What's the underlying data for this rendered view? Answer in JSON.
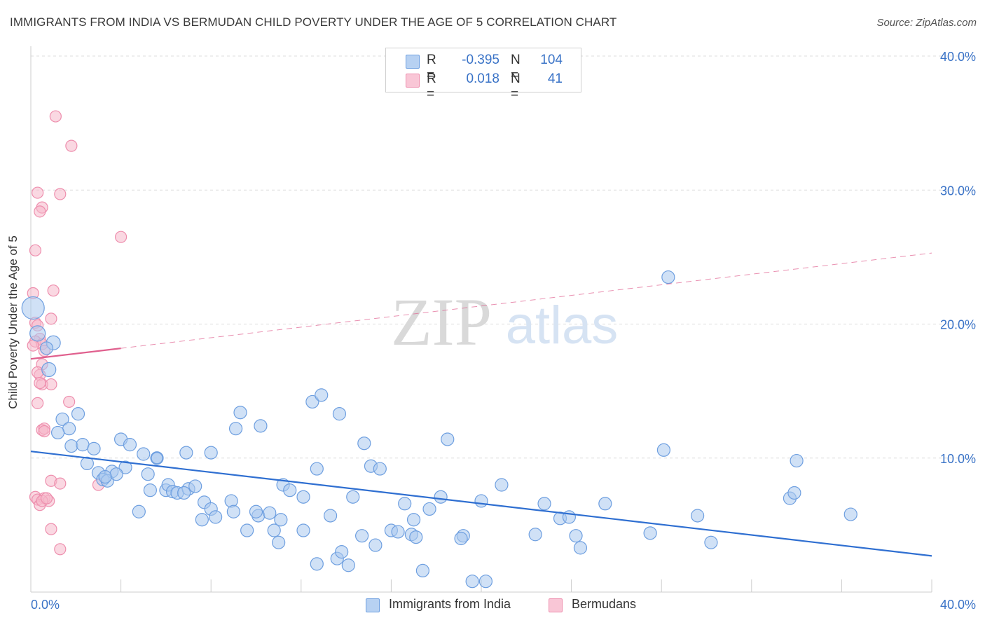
{
  "title": "IMMIGRANTS FROM INDIA VS BERMUDAN CHILD POVERTY UNDER THE AGE OF 5 CORRELATION CHART",
  "source": "Source: ZipAtlas.com",
  "watermark": {
    "zip": "ZIP",
    "atlas": "atlas"
  },
  "legend": {
    "r_label": "R =",
    "n_label": "N =",
    "rows": [
      {
        "r": "-0.395",
        "n": "104"
      },
      {
        "r": "0.018",
        "n": "41"
      }
    ]
  },
  "chart_data": {
    "type": "scatter",
    "title": "IMMIGRANTS FROM INDIA VS BERMUDAN CHILD POVERTY UNDER THE AGE OF 5 CORRELATION CHART",
    "xlabel": "",
    "ylabel": "Child Poverty Under the Age of 5",
    "xlim": [
      0,
      40
    ],
    "ylim": [
      0,
      40
    ],
    "x_tick_labels": [
      "0.0%",
      "40.0%"
    ],
    "y_tick_labels": [
      "10.0%",
      "20.0%",
      "30.0%",
      "40.0%"
    ],
    "y_ticks": [
      10,
      20,
      30,
      40
    ],
    "grid": true,
    "legend_position": "top-center",
    "series": [
      {
        "name": "Immigrants from India",
        "color": "#a9c8ef",
        "edge_color": "#6e9fe0",
        "trend_color": "#2f6fd1",
        "trend": {
          "x": [
            0,
            40
          ],
          "y": [
            10.5,
            2.7
          ]
        },
        "points": [
          [
            0.1,
            21.2,
            16
          ],
          [
            0.3,
            19.3,
            11
          ],
          [
            1.0,
            18.6,
            10
          ],
          [
            0.7,
            18.2,
            9
          ],
          [
            0.8,
            16.6,
            10
          ],
          [
            1.4,
            12.9,
            9
          ],
          [
            2.1,
            13.3,
            9
          ],
          [
            1.7,
            12.2,
            9
          ],
          [
            1.2,
            11.9,
            9
          ],
          [
            1.8,
            10.9,
            9
          ],
          [
            2.3,
            11.0,
            9
          ],
          [
            2.8,
            10.7,
            9
          ],
          [
            4.0,
            11.4,
            9
          ],
          [
            4.4,
            11.0,
            9
          ],
          [
            5.0,
            10.3,
            9
          ],
          [
            5.6,
            10.0,
            9
          ],
          [
            6.9,
            10.4,
            9
          ],
          [
            8.0,
            10.4,
            9
          ],
          [
            2.5,
            9.6,
            9
          ],
          [
            3.0,
            8.9,
            9
          ],
          [
            3.6,
            9.0,
            9
          ],
          [
            4.2,
            9.3,
            9
          ],
          [
            3.2,
            8.4,
            9
          ],
          [
            3.4,
            8.3,
            9
          ],
          [
            3.8,
            8.8,
            9
          ],
          [
            5.2,
            8.8,
            9
          ],
          [
            5.3,
            7.6,
            9
          ],
          [
            6.0,
            7.6,
            9
          ],
          [
            6.1,
            8.0,
            9
          ],
          [
            6.3,
            7.5,
            9
          ],
          [
            6.5,
            7.4,
            9
          ],
          [
            7.0,
            7.7,
            9
          ],
          [
            7.3,
            7.9,
            9
          ],
          [
            7.7,
            6.7,
            9
          ],
          [
            8.0,
            6.2,
            9
          ],
          [
            8.2,
            5.6,
            9
          ],
          [
            8.9,
            6.8,
            9
          ],
          [
            9.0,
            6.0,
            9
          ],
          [
            6.8,
            7.4,
            9
          ],
          [
            4.8,
            6.0,
            9
          ],
          [
            7.6,
            5.4,
            9
          ],
          [
            9.3,
            13.4,
            9
          ],
          [
            9.1,
            12.2,
            9
          ],
          [
            10.2,
            12.4,
            9
          ],
          [
            9.6,
            4.6,
            9
          ],
          [
            10.1,
            5.7,
            9
          ],
          [
            10.6,
            5.9,
            9
          ],
          [
            10.0,
            6.0,
            9
          ],
          [
            10.8,
            4.6,
            9
          ],
          [
            11.1,
            5.4,
            9
          ],
          [
            11.0,
            3.7,
            9
          ],
          [
            11.2,
            8.0,
            9
          ],
          [
            11.5,
            7.6,
            9
          ],
          [
            12.1,
            7.1,
            9
          ],
          [
            12.5,
            14.2,
            9
          ],
          [
            12.9,
            14.7,
            9
          ],
          [
            12.7,
            9.2,
            9
          ],
          [
            12.1,
            4.6,
            9
          ],
          [
            13.7,
            13.3,
            9
          ],
          [
            13.3,
            5.7,
            9
          ],
          [
            13.6,
            2.5,
            9
          ],
          [
            13.8,
            3.0,
            9
          ],
          [
            14.1,
            2.0,
            9
          ],
          [
            12.7,
            2.1,
            9
          ],
          [
            14.3,
            7.1,
            9
          ],
          [
            14.7,
            4.2,
            9
          ],
          [
            14.8,
            11.1,
            9
          ],
          [
            15.1,
            9.4,
            9
          ],
          [
            15.5,
            9.2,
            9
          ],
          [
            15.3,
            3.5,
            9
          ],
          [
            16.0,
            4.6,
            9
          ],
          [
            16.3,
            4.5,
            9
          ],
          [
            16.6,
            6.6,
            9
          ],
          [
            16.9,
            4.3,
            9
          ],
          [
            17.0,
            5.4,
            9
          ],
          [
            17.1,
            4.1,
            9
          ],
          [
            17.4,
            1.6,
            9
          ],
          [
            17.7,
            6.2,
            9
          ],
          [
            18.2,
            7.1,
            9
          ],
          [
            18.5,
            11.4,
            9
          ],
          [
            19.2,
            4.2,
            9
          ],
          [
            19.1,
            4.0,
            9
          ],
          [
            19.6,
            0.8,
            9
          ],
          [
            20.2,
            0.8,
            9
          ],
          [
            20.0,
            6.8,
            9
          ],
          [
            20.9,
            8.0,
            9
          ],
          [
            22.4,
            4.3,
            9
          ],
          [
            22.8,
            6.6,
            9
          ],
          [
            23.5,
            5.5,
            9
          ],
          [
            23.9,
            5.6,
            9
          ],
          [
            24.2,
            4.2,
            9
          ],
          [
            24.4,
            3.3,
            9
          ],
          [
            25.5,
            6.6,
            9
          ],
          [
            27.5,
            4.4,
            9
          ],
          [
            28.1,
            10.6,
            9
          ],
          [
            28.3,
            23.5,
            9
          ],
          [
            29.6,
            5.7,
            9
          ],
          [
            30.2,
            3.7,
            9
          ],
          [
            33.7,
            7.0,
            9
          ],
          [
            33.9,
            7.4,
            9
          ],
          [
            34.0,
            9.8,
            9
          ],
          [
            36.4,
            5.8,
            9
          ],
          [
            3.3,
            8.6,
            9
          ],
          [
            5.6,
            10.0,
            8
          ]
        ]
      },
      {
        "name": "Bermudans",
        "color": "#f6b8cb",
        "edge_color": "#ee8fae",
        "trend_color": "#e0608e",
        "trend": {
          "x": [
            0,
            40
          ],
          "y": [
            17.4,
            25.3
          ],
          "solid_until": 4
        },
        "points": [
          [
            1.1,
            35.5,
            8
          ],
          [
            1.8,
            33.3,
            8
          ],
          [
            0.3,
            29.8,
            8
          ],
          [
            1.3,
            29.7,
            8
          ],
          [
            0.5,
            28.7,
            8
          ],
          [
            0.4,
            28.4,
            8
          ],
          [
            0.2,
            25.5,
            8
          ],
          [
            4.0,
            26.5,
            8
          ],
          [
            1.0,
            22.5,
            8
          ],
          [
            0.1,
            22.3,
            8
          ],
          [
            0.9,
            20.4,
            8
          ],
          [
            0.2,
            20.1,
            8
          ],
          [
            0.3,
            19.9,
            8
          ],
          [
            0.4,
            18.9,
            8
          ],
          [
            0.2,
            18.7,
            8
          ],
          [
            0.5,
            18.5,
            8
          ],
          [
            0.1,
            18.4,
            8
          ],
          [
            0.6,
            18.0,
            8
          ],
          [
            0.5,
            17.0,
            8
          ],
          [
            0.4,
            16.2,
            8
          ],
          [
            0.3,
            16.4,
            8
          ],
          [
            0.5,
            15.5,
            8
          ],
          [
            0.9,
            15.5,
            8
          ],
          [
            0.4,
            15.6,
            8
          ],
          [
            0.3,
            14.1,
            8
          ],
          [
            1.7,
            14.2,
            8
          ],
          [
            0.5,
            12.1,
            8
          ],
          [
            0.6,
            12.2,
            8
          ],
          [
            0.6,
            12.0,
            8
          ],
          [
            0.9,
            8.3,
            8
          ],
          [
            1.3,
            8.1,
            8
          ],
          [
            3.0,
            8.0,
            8
          ],
          [
            0.2,
            7.1,
            8
          ],
          [
            0.3,
            6.9,
            8
          ],
          [
            0.6,
            7.0,
            8
          ],
          [
            0.8,
            6.8,
            8
          ],
          [
            0.4,
            6.5,
            8
          ],
          [
            0.5,
            6.8,
            8
          ],
          [
            0.9,
            4.7,
            8
          ],
          [
            1.3,
            3.2,
            8
          ],
          [
            0.7,
            7.0,
            8
          ]
        ]
      }
    ]
  }
}
